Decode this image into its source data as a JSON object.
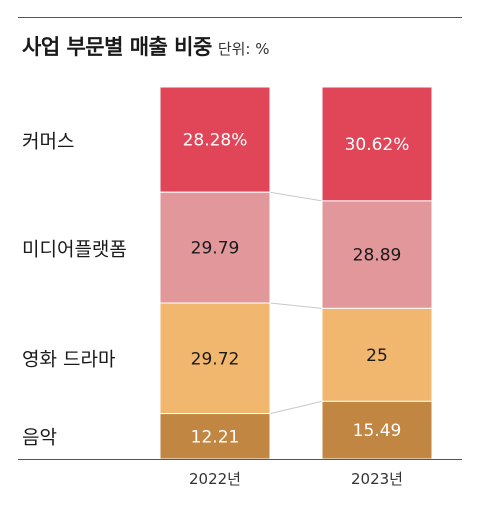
{
  "header": {
    "title": "사업 부문별 매출 비중",
    "unit": "단위: %"
  },
  "chart_data": {
    "type": "bar",
    "stacked": true,
    "title": "사업 부문별 매출 비중",
    "unit": "단위: %",
    "categories": [
      "2022년",
      "2023년"
    ],
    "series": [
      {
        "name": "커머스",
        "values": [
          28.28,
          30.62
        ],
        "labels": [
          "28.28%",
          "30.62%"
        ],
        "color": "#e04558",
        "text_color": "#ffffff"
      },
      {
        "name": "미디어플랫폼",
        "values": [
          29.79,
          28.89
        ],
        "labels": [
          "29.79",
          "28.89"
        ],
        "color": "#e2979a",
        "text_color": "#1a1a1a"
      },
      {
        "name": "영화 드라마",
        "values": [
          29.72,
          25
        ],
        "labels": [
          "29.72",
          "25"
        ],
        "color": "#f2b76e",
        "text_color": "#1a1a1a"
      },
      {
        "name": "음악",
        "values": [
          12.21,
          15.49
        ],
        "labels": [
          "12.21",
          "15.49"
        ],
        "color": "#c08642",
        "text_color": "#ffffff"
      }
    ],
    "ylim": [
      0,
      100
    ],
    "grid": false,
    "legend": "left"
  }
}
